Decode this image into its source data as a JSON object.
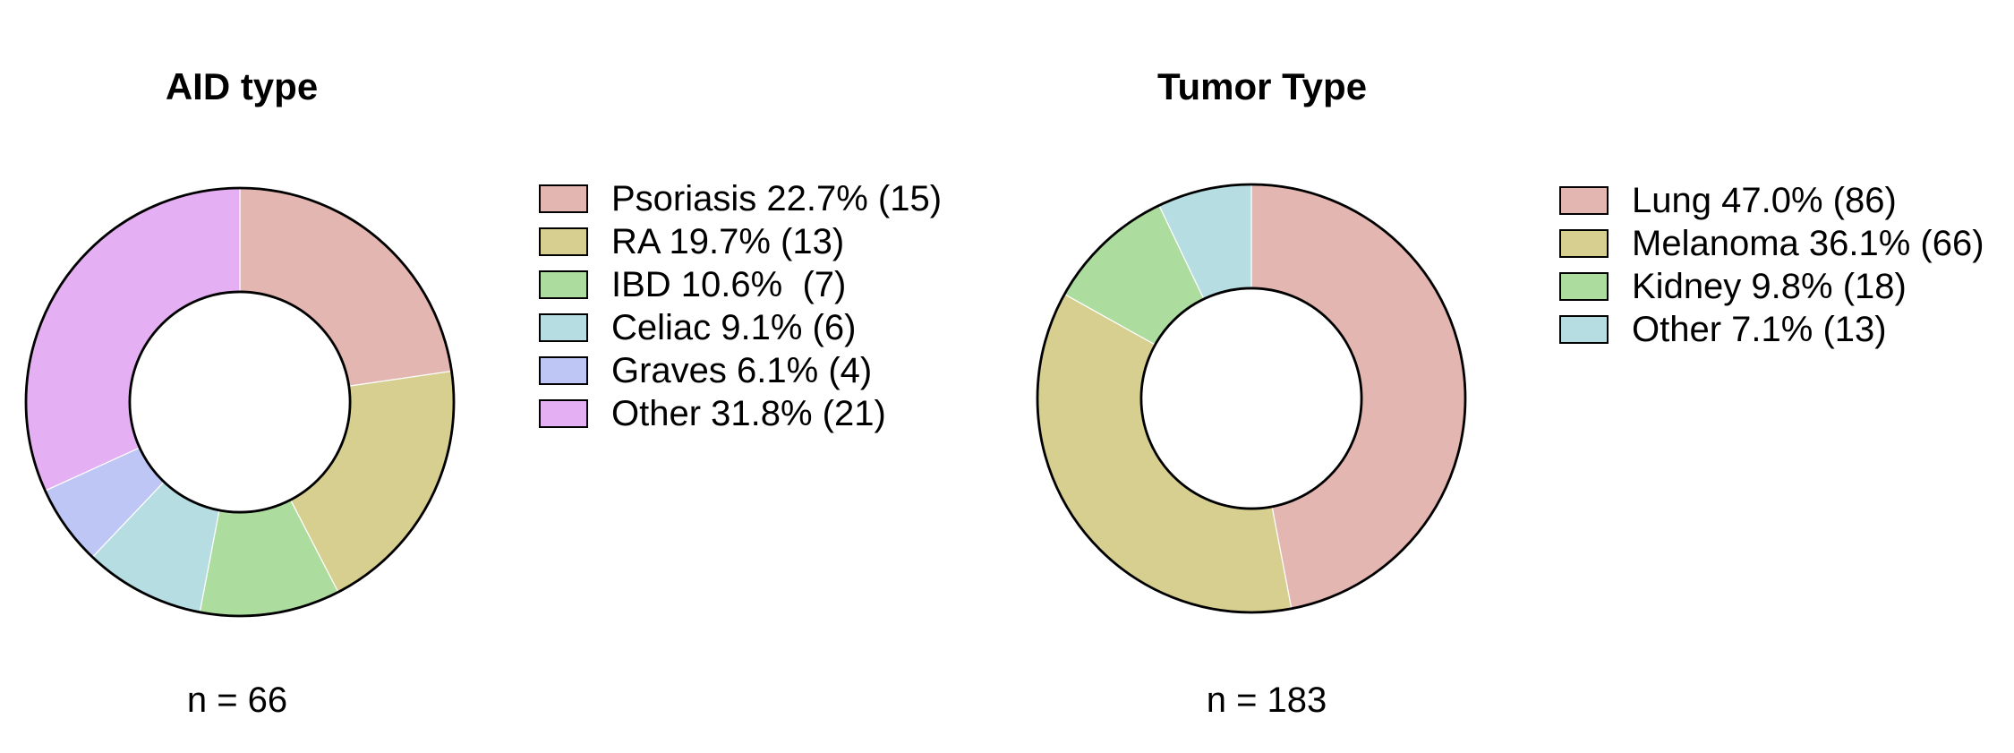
{
  "figure": {
    "background": "#ffffff",
    "text_color": "#000000",
    "outline_color": "#000000",
    "separator_color": "#ffffff"
  },
  "chart_data": [
    {
      "type": "pie",
      "subtype": "donut",
      "title": "AID type",
      "annotation": "n = 66",
      "n": 66,
      "categories": [
        "Psoriasis",
        "RA",
        "IBD",
        "Celiac",
        "Graves",
        "Other"
      ],
      "values": [
        15,
        13,
        7,
        6,
        4,
        21
      ],
      "percents": [
        22.7,
        19.7,
        10.6,
        9.1,
        6.1,
        31.8
      ],
      "legend_labels": [
        "Psoriasis 22.7% (15)",
        "RA 19.7% (13)",
        "IBD 10.6%  (7)",
        "Celiac 9.1% (6)",
        "Graves 6.1% (4)",
        "Other 31.8% (21)"
      ],
      "colors": [
        "#e4b6b1",
        "#d6cf90",
        "#addc9f",
        "#b5dde2",
        "#bec6f6",
        "#e5aff3"
      ],
      "legend_position": "right",
      "start_angle": "top",
      "direction": "clockwise",
      "hole_ratio": 0.515,
      "outline_color": "#000000"
    },
    {
      "type": "pie",
      "subtype": "donut",
      "title": "Tumor Type",
      "annotation": "n = 183",
      "n": 183,
      "categories": [
        "Lung",
        "Melanoma",
        "Kidney",
        "Other"
      ],
      "values": [
        86,
        66,
        18,
        13
      ],
      "percents": [
        47.0,
        36.1,
        9.8,
        7.1
      ],
      "legend_labels": [
        "Lung 47.0% (86)",
        "Melanoma 36.1% (66)",
        "Kidney 9.8% (18)",
        "Other 7.1% (13)"
      ],
      "colors": [
        "#e4b6b1",
        "#d6cf90",
        "#addc9f",
        "#b5dde2"
      ],
      "legend_position": "right",
      "start_angle": "top",
      "direction": "clockwise",
      "hole_ratio": 0.515,
      "outline_color": "#000000"
    }
  ]
}
